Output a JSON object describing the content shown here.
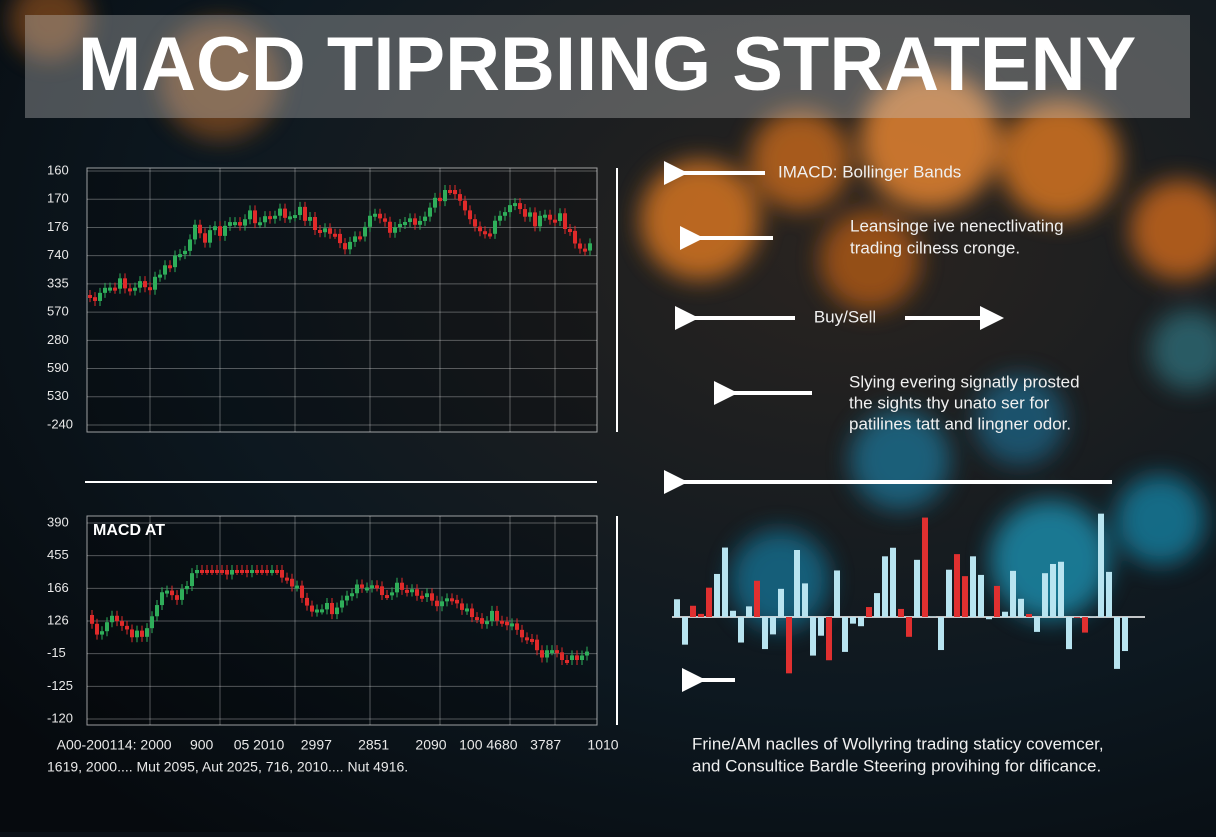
{
  "title": "MACD TIPRBIING STRATENY",
  "top_chart": {
    "y_labels": [
      "160",
      "170",
      "176",
      "740",
      "335",
      "570",
      "280",
      "590",
      "530",
      "-240"
    ]
  },
  "bottom_chart": {
    "label": "MACD AT",
    "y_labels": [
      "390",
      "455",
      "166",
      "126",
      "-15",
      "-125",
      "-120"
    ],
    "x_labels": [
      "A00-2001",
      "14: 2000",
      "900",
      "05 2010",
      "2997",
      "2851",
      "2090",
      "100 4680",
      "3787",
      "1010"
    ],
    "date_line": "1619, 2000.... Mut 2095, Aut 2025, 716, 2010.... Nut 4916."
  },
  "annotations": {
    "bands": "IMACD: Bollinger Bands",
    "desc1": [
      "Leansinge ive nenectlivating",
      "trading cilness cronge."
    ],
    "buy_sell": "Buy/Sell",
    "desc2": [
      "Slying evering signatly prosted",
      "the sights thy unato ser for",
      "patilines tatt and lingner odor."
    ],
    "footer": [
      "Frine/AM naclles of Wollyring trading staticy covemcer,",
      "and Consultice Bardle Steering provihing for dificance."
    ]
  }
}
